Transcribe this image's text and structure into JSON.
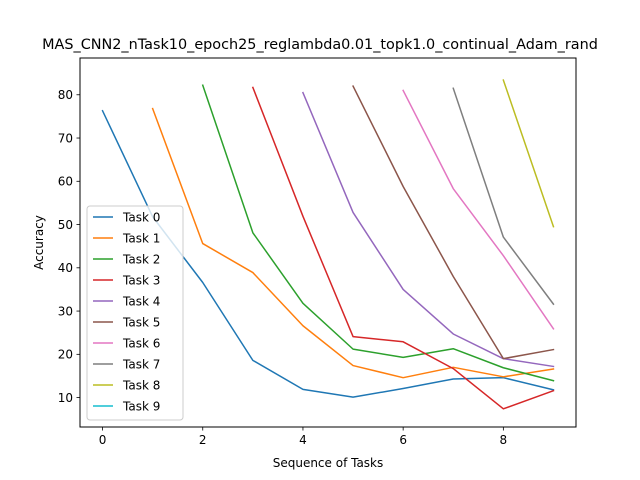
{
  "chart_data": {
    "type": "line",
    "title": "MAS_CNN2_nTask10_epoch25_reglambda0.01_topk1.0_continual_Adam_rand",
    "xlabel": "Sequence of Tasks",
    "ylabel": "Accuracy",
    "xlim": [
      -0.45,
      9.45
    ],
    "ylim": [
      3.2,
      88.5
    ],
    "xticks": [
      0,
      2,
      4,
      6,
      8
    ],
    "yticks": [
      10,
      20,
      30,
      40,
      50,
      60,
      70,
      80
    ],
    "grid": false,
    "legend_position": "lower-left",
    "series": [
      {
        "name": "Task 0",
        "color": "#1f77b4",
        "x": [
          0,
          1,
          2,
          3,
          4,
          5,
          6,
          7,
          8,
          9
        ],
        "y": [
          76.3,
          51.8,
          36.6,
          18.6,
          11.9,
          10.1,
          12.1,
          14.3,
          14.6,
          11.8
        ]
      },
      {
        "name": "Task 1",
        "color": "#ff7f0e",
        "x": [
          1,
          2,
          3,
          4,
          5,
          6,
          7,
          8,
          9
        ],
        "y": [
          76.8,
          45.6,
          38.9,
          26.6,
          17.4,
          14.6,
          17.0,
          14.8,
          16.6
        ]
      },
      {
        "name": "Task 2",
        "color": "#2ca02c",
        "x": [
          2,
          3,
          4,
          5,
          6,
          7,
          8,
          9
        ],
        "y": [
          82.2,
          48.1,
          31.8,
          21.2,
          19.3,
          21.3,
          16.9,
          13.9
        ]
      },
      {
        "name": "Task 3",
        "color": "#d62728",
        "x": [
          3,
          4,
          5,
          6,
          7,
          8,
          9
        ],
        "y": [
          81.7,
          51.9,
          24.1,
          22.9,
          16.7,
          7.4,
          11.6
        ]
      },
      {
        "name": "Task 4",
        "color": "#9467bd",
        "x": [
          4,
          5,
          6,
          7,
          8,
          9
        ],
        "y": [
          80.5,
          52.8,
          35.0,
          24.7,
          19.0,
          17.2
        ]
      },
      {
        "name": "Task 5",
        "color": "#8c564b",
        "x": [
          5,
          6,
          7,
          8,
          9
        ],
        "y": [
          82.0,
          58.8,
          38.0,
          19.0,
          21.1
        ]
      },
      {
        "name": "Task 6",
        "color": "#e377c2",
        "x": [
          6,
          7,
          8,
          9
        ],
        "y": [
          81.0,
          58.3,
          42.8,
          25.9
        ]
      },
      {
        "name": "Task 7",
        "color": "#7f7f7f",
        "x": [
          7,
          8,
          9
        ],
        "y": [
          81.5,
          47.1,
          31.6
        ]
      },
      {
        "name": "Task 8",
        "color": "#bcbd22",
        "x": [
          8,
          9
        ],
        "y": [
          83.4,
          49.5
        ]
      },
      {
        "name": "Task 9",
        "color": "#17becf",
        "x": [],
        "y": []
      }
    ]
  }
}
